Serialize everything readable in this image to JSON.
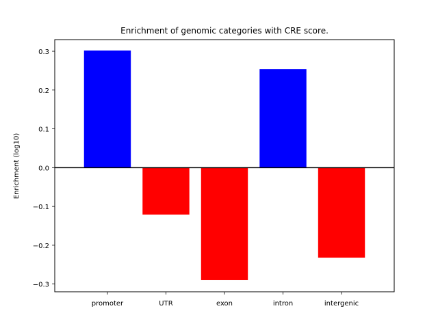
{
  "chart_data": {
    "type": "bar",
    "title": "Enrichment of genomic categories with CRE score.",
    "xlabel": "",
    "ylabel": "Enrichment (log10)",
    "categories": [
      "promoter",
      "UTR",
      "exon",
      "intron",
      "intergenic"
    ],
    "values": [
      0.302,
      -0.121,
      -0.29,
      0.254,
      -0.232
    ],
    "colors": [
      "#0000ff",
      "#ff0000",
      "#ff0000",
      "#0000ff",
      "#ff0000"
    ],
    "positive_color": "#0000ff",
    "negative_color": "#ff0000",
    "ylim": [
      -0.32,
      0.33
    ],
    "yticks": [
      0.3,
      0.2,
      0.1,
      0.0,
      -0.1,
      -0.2,
      -0.3
    ],
    "ytick_labels": [
      "0.3",
      "0.2",
      "0.1",
      "0.0",
      "−0.1",
      "−0.2",
      "−0.3"
    ],
    "zero_line": true,
    "grid": false,
    "legend": "none"
  }
}
